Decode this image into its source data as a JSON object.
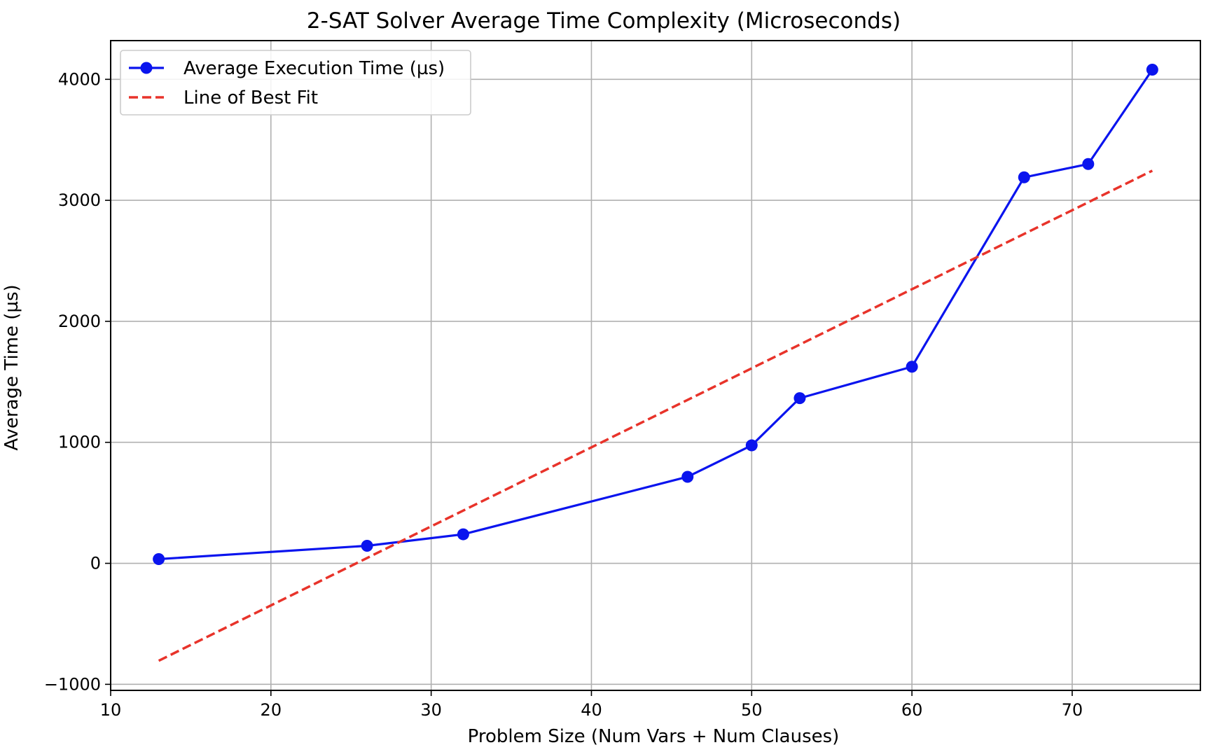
{
  "chart_data": {
    "type": "line",
    "title": "2-SAT Solver Average Time Complexity (Microseconds)",
    "xlabel": "Problem Size (Num Vars + Num Clauses)",
    "ylabel": "Average Time (µs)",
    "xlim": [
      10,
      78
    ],
    "ylim": [
      -1050,
      4320
    ],
    "xticks": [
      10,
      20,
      30,
      40,
      50,
      60,
      70
    ],
    "yticks": [
      -1000,
      0,
      1000,
      2000,
      3000,
      4000
    ],
    "xtick_labels": [
      "10",
      "20",
      "30",
      "40",
      "50",
      "60",
      "70"
    ],
    "ytick_labels": [
      "−1000",
      "0",
      "1000",
      "2000",
      "3000",
      "4000"
    ],
    "grid": true,
    "legend_position": "top-left",
    "series": [
      {
        "name": "Average Execution Time (µs)",
        "style": "line-with-markers",
        "color": "#0a14ee",
        "x": [
          13,
          26,
          32,
          46,
          50,
          53,
          60,
          67,
          71,
          75
        ],
        "y": [
          35,
          145,
          240,
          715,
          975,
          1365,
          1625,
          3190,
          3300,
          4080
        ]
      },
      {
        "name": "Line of Best Fit",
        "style": "dashed",
        "color": "#e8332a",
        "x": [
          13,
          75
        ],
        "y": [
          -805,
          3245
        ]
      }
    ]
  }
}
